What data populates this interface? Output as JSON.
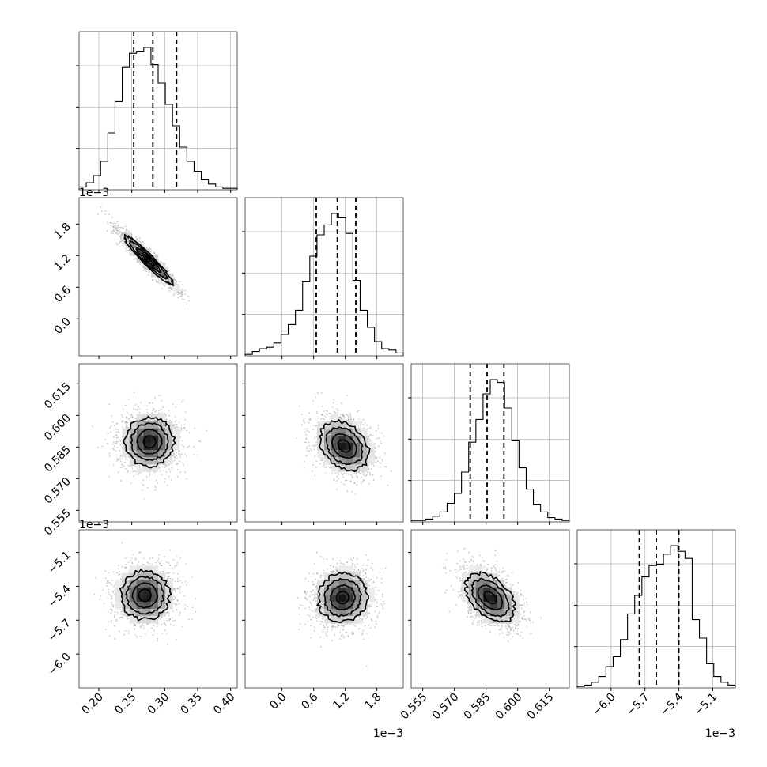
{
  "chart_data": {
    "type": "corner",
    "title": "",
    "grid": true,
    "colors": {
      "line": "#000000",
      "grid": "#b0b0b0",
      "scatter": "#9a9a9a"
    },
    "params": [
      {
        "range": [
          0.17,
          0.41
        ],
        "ticks": [
          0.2,
          0.25,
          0.3,
          0.35,
          0.4
        ],
        "tick_labels": [
          "0.20",
          "0.25",
          "0.30",
          "0.35",
          "0.40"
        ],
        "offset_label": "",
        "quantiles": [
          0.253,
          0.282,
          0.318
        ]
      },
      {
        "range": [
          -0.0007,
          0.0023
        ],
        "ticks": [
          0.0,
          0.0006,
          0.0012,
          0.0018
        ],
        "tick_labels": [
          "0.0",
          "0.6",
          "1.2",
          "1.8"
        ],
        "offset_label": "1e−3",
        "quantiles": [
          0.00065,
          0.00105,
          0.0014
        ]
      },
      {
        "range": [
          0.5495,
          0.6245
        ],
        "ticks": [
          0.555,
          0.57,
          0.585,
          0.6,
          0.615
        ],
        "tick_labels": [
          "0.555",
          "0.570",
          "0.585",
          "0.600",
          "0.615"
        ],
        "offset_label": "",
        "quantiles": [
          0.5775,
          0.5855,
          0.5935
        ]
      },
      {
        "range": [
          -0.0063,
          -0.0049
        ],
        "ticks": [
          -0.006,
          -0.0057,
          -0.0054,
          -0.0051
        ],
        "tick_labels": [
          "−6.0",
          "−5.7",
          "−5.4",
          "−5.1"
        ],
        "offset_label": "1e−3",
        "quantiles": [
          -0.00575,
          -0.0056,
          -0.0054
        ]
      }
    ],
    "histograms": [
      [
        0.02,
        0.05,
        0.1,
        0.2,
        0.4,
        0.62,
        0.86,
        0.96,
        0.97,
        1.0,
        0.88,
        0.75,
        0.6,
        0.45,
        0.3,
        0.2,
        0.13,
        0.07,
        0.04,
        0.02,
        0.01,
        0.01
      ],
      [
        0.01,
        0.03,
        0.05,
        0.06,
        0.09,
        0.15,
        0.22,
        0.32,
        0.52,
        0.7,
        0.85,
        0.92,
        1.0,
        0.97,
        0.86,
        0.53,
        0.32,
        0.2,
        0.1,
        0.05,
        0.04,
        0.02
      ],
      [
        0.01,
        0.01,
        0.02,
        0.04,
        0.07,
        0.13,
        0.2,
        0.35,
        0.56,
        0.72,
        0.9,
        1.0,
        0.98,
        0.8,
        0.57,
        0.38,
        0.23,
        0.12,
        0.07,
        0.03,
        0.02,
        0.01
      ],
      [
        0.01,
        0.02,
        0.04,
        0.08,
        0.15,
        0.22,
        0.34,
        0.52,
        0.65,
        0.78,
        0.86,
        0.87,
        0.94,
        1.0,
        0.96,
        0.91,
        0.48,
        0.35,
        0.17,
        0.08,
        0.04,
        0.02
      ]
    ],
    "pair_stats": [
      {
        "i": 1,
        "j": 0,
        "corr": -0.95,
        "mode": [
          0.275,
          0.00112
        ]
      },
      {
        "i": 2,
        "j": 0,
        "corr": 0.0,
        "mode": [
          0.277,
          0.5875
        ]
      },
      {
        "i": 2,
        "j": 1,
        "corr": -0.3,
        "mode": [
          0.00118,
          0.5855
        ]
      },
      {
        "i": 3,
        "j": 0,
        "corr": 0.0,
        "mode": [
          0.27,
          -0.00548
        ]
      },
      {
        "i": 3,
        "j": 1,
        "corr": 0.05,
        "mode": [
          0.00115,
          -0.0055
        ]
      },
      {
        "i": 3,
        "j": 2,
        "corr": -0.45,
        "mode": [
          0.587,
          -0.0055
        ]
      }
    ]
  }
}
